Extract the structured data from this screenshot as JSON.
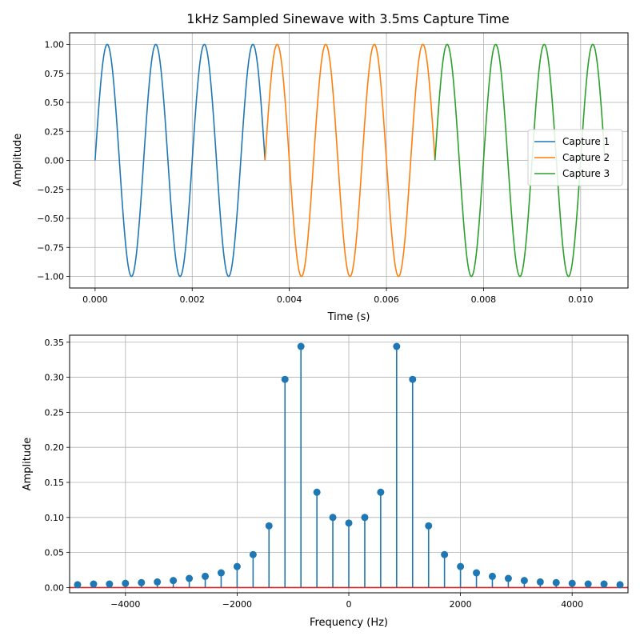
{
  "chart_data": [
    {
      "type": "line",
      "title": "1kHz Sampled Sinewave with 3.5ms Capture Time",
      "xlabel": "Time (s)",
      "ylabel": "Amplitude",
      "xlim": [
        -0.000525,
        0.010975
      ],
      "ylim": [
        -1.1,
        1.1
      ],
      "grid": true,
      "legend_position": "center-right",
      "signal": {
        "frequency_hz": 1000,
        "capture_time_s": 0.0035
      },
      "xticks": [
        {
          "value": 0.0,
          "label": "0.000"
        },
        {
          "value": 0.002,
          "label": "0.002"
        },
        {
          "value": 0.004,
          "label": "0.004"
        },
        {
          "value": 0.006,
          "label": "0.006"
        },
        {
          "value": 0.008,
          "label": "0.008"
        },
        {
          "value": 0.01,
          "label": "0.010"
        }
      ],
      "yticks": [
        {
          "value": 1.0,
          "label": "1.00"
        },
        {
          "value": 0.75,
          "label": "0.75"
        },
        {
          "value": 0.5,
          "label": "0.50"
        },
        {
          "value": 0.25,
          "label": "0.25"
        },
        {
          "value": 0.0,
          "label": "0.00"
        },
        {
          "value": -0.25,
          "label": "−0.25"
        },
        {
          "value": -0.5,
          "label": "−0.50"
        },
        {
          "value": -0.75,
          "label": "−0.75"
        },
        {
          "value": -1.0,
          "label": "−1.00"
        }
      ],
      "series": [
        {
          "name": "Capture 1",
          "x_range": [
            0.0,
            0.0035
          ],
          "color": "#1f77b4"
        },
        {
          "name": "Capture 2",
          "x_range": [
            0.0035,
            0.007
          ],
          "color": "#ff7f0e"
        },
        {
          "name": "Capture 3",
          "x_range": [
            0.007,
            0.0105
          ],
          "color": "#2ca02c"
        }
      ]
    },
    {
      "type": "stem",
      "title": "",
      "xlabel": "Frequency (Hz)",
      "ylabel": "Amplitude",
      "xlim": [
        -5000,
        5000
      ],
      "ylim": [
        -0.0075,
        0.36
      ],
      "grid": true,
      "stem_color": "#1f77b4",
      "baseline_color": "#d62728",
      "xticks": [
        {
          "value": -4000,
          "label": "−4000"
        },
        {
          "value": -2000,
          "label": "−2000"
        },
        {
          "value": 0,
          "label": "0"
        },
        {
          "value": 2000,
          "label": "2000"
        },
        {
          "value": 4000,
          "label": "4000"
        }
      ],
      "yticks": [
        {
          "value": 0.35,
          "label": "0.35"
        },
        {
          "value": 0.3,
          "label": "0.30"
        },
        {
          "value": 0.25,
          "label": "0.25"
        },
        {
          "value": 0.2,
          "label": "0.20"
        },
        {
          "value": 0.15,
          "label": "0.15"
        },
        {
          "value": 0.1,
          "label": "0.10"
        },
        {
          "value": 0.05,
          "label": "0.05"
        },
        {
          "value": 0.0,
          "label": "0.00"
        }
      ],
      "x": [
        -4857,
        -4571,
        -4286,
        -4000,
        -3714,
        -3429,
        -3143,
        -2857,
        -2571,
        -2286,
        -2000,
        -1714,
        -1429,
        -1143,
        -857,
        -571,
        -286,
        0,
        286,
        571,
        857,
        1143,
        1429,
        1714,
        2000,
        2286,
        2571,
        2857,
        3143,
        3429,
        3714,
        4000,
        4286,
        4571,
        4857
      ],
      "values": [
        0.004,
        0.005,
        0.005,
        0.006,
        0.007,
        0.008,
        0.01,
        0.013,
        0.016,
        0.021,
        0.03,
        0.047,
        0.088,
        0.297,
        0.344,
        0.136,
        0.1,
        0.092,
        0.1,
        0.136,
        0.344,
        0.297,
        0.088,
        0.047,
        0.03,
        0.021,
        0.016,
        0.013,
        0.01,
        0.008,
        0.007,
        0.006,
        0.005,
        0.005,
        0.004
      ]
    }
  ]
}
